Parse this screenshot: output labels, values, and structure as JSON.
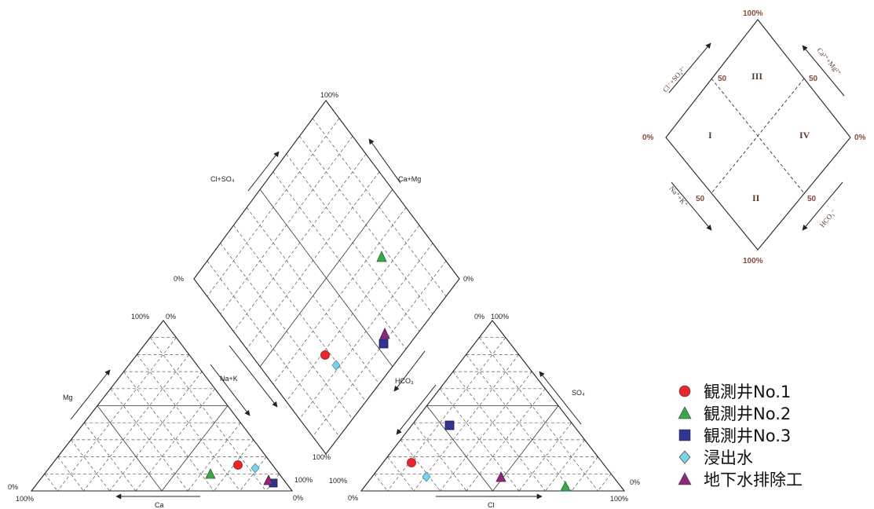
{
  "piper": {
    "diamond": {
      "label_top": "100%",
      "label_left": "0%",
      "label_right": "0%",
      "label_bottom": "100%",
      "arrow_cl_so4": "Cl+SO₄",
      "arrow_ca_mg": "Ca+Mg",
      "arrow_hco3": "HCO₃"
    },
    "cation_triangle": {
      "apex_left": "100%",
      "apex_right": "0%",
      "base_left_top": "0%",
      "base_left_bottom": "100%",
      "base_right": "100%",
      "base_right_bottom": "0%",
      "arrow_mg": "Mg",
      "arrow_nak": "Na+K",
      "arrow_ca": "Ca"
    },
    "anion_triangle": {
      "apex_left": "0%",
      "apex_right": "100%",
      "base_left_top": "100%",
      "base_left_bottom": "0%",
      "base_right": "0%",
      "base_right_bottom": "100%",
      "arrow_so4": "SO₄",
      "arrow_cl": "Cl"
    }
  },
  "reference_diamond": {
    "label_top": "100%",
    "label_bottom": "100%",
    "label_left": "0%",
    "label_right": "0%",
    "fifty": "50",
    "zone_1": "I",
    "zone_2": "II",
    "zone_3": "III",
    "zone_4": "IV",
    "axis_ul": "Cl⁻+SO₄²⁻",
    "axis_ur": "Ca²⁺+Mg²⁺",
    "axis_ll": "Na⁺+K⁺",
    "axis_lr": "HCO₃⁻"
  },
  "legend": [
    {
      "label": "観測井No.1",
      "marker": "circle",
      "color": "#e8262b"
    },
    {
      "label": "観測井No.2",
      "marker": "triangle",
      "color": "#3aa84a"
    },
    {
      "label": "観測井No.3",
      "marker": "square",
      "color": "#2f3590"
    },
    {
      "label": "浸出水",
      "marker": "diamond",
      "color": "#7fd2e8"
    },
    {
      "label": "地下水排除工",
      "marker": "triangle",
      "color": "#8b2a7a"
    }
  ]
}
